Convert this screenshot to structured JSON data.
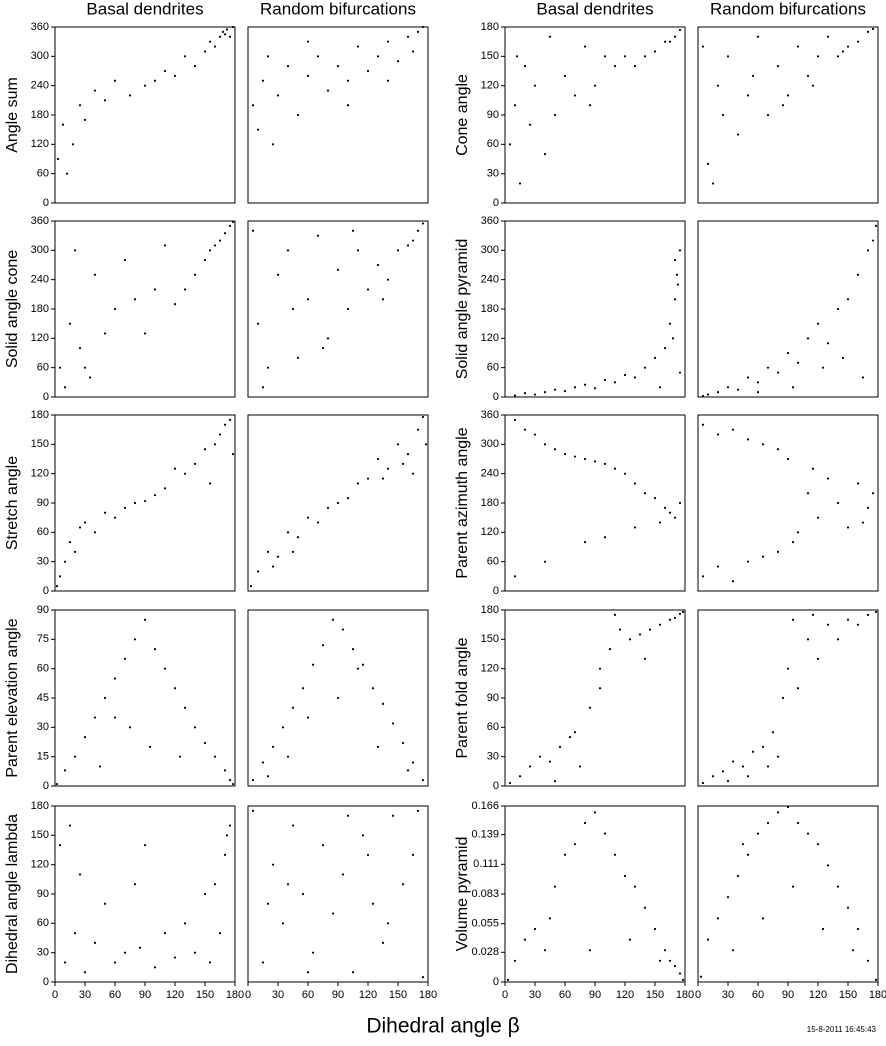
{
  "x_label": "Dihedral angle β",
  "timestamp": "15-8-2011 16:45:43",
  "chart_data": [
    {
      "type": "scatter",
      "title": "Basal dendrites",
      "ylabel": "Angle sum",
      "color": "#000",
      "xlim": [
        0,
        180
      ],
      "ylim": [
        0,
        360
      ],
      "yticks": [
        0,
        60,
        120,
        180,
        240,
        300,
        360
      ],
      "x": [
        3,
        8,
        12,
        18,
        25,
        30,
        40,
        50,
        60,
        75,
        90,
        100,
        110,
        120,
        130,
        140,
        150,
        155,
        160,
        165,
        168,
        170,
        172,
        175,
        178
      ],
      "values": [
        90,
        160,
        60,
        120,
        200,
        170,
        230,
        210,
        250,
        220,
        240,
        250,
        270,
        260,
        300,
        280,
        310,
        330,
        320,
        340,
        350,
        345,
        355,
        340,
        360
      ]
    },
    {
      "type": "scatter",
      "title": "Random bifurcations",
      "color": "#000",
      "xlim": [
        0,
        180
      ],
      "ylim": [
        0,
        360
      ],
      "x": [
        5,
        10,
        15,
        20,
        30,
        40,
        50,
        60,
        70,
        80,
        90,
        100,
        110,
        120,
        130,
        140,
        150,
        160,
        170,
        175,
        25,
        60,
        100,
        140,
        165
      ],
      "values": [
        200,
        150,
        250,
        300,
        220,
        280,
        180,
        260,
        300,
        230,
        280,
        250,
        320,
        270,
        300,
        330,
        290,
        340,
        350,
        360,
        120,
        330,
        200,
        250,
        310
      ]
    },
    {
      "type": "scatter",
      "title": "Basal dendrites",
      "ylabel": "Cone angle",
      "color": "#000",
      "xlim": [
        0,
        180
      ],
      "ylim": [
        0,
        180
      ],
      "yticks": [
        0,
        30,
        60,
        90,
        120,
        150,
        180
      ],
      "x": [
        5,
        10,
        15,
        20,
        25,
        30,
        40,
        50,
        60,
        70,
        80,
        90,
        100,
        110,
        120,
        130,
        140,
        150,
        160,
        165,
        170,
        175,
        12,
        45,
        85
      ],
      "values": [
        60,
        100,
        20,
        140,
        80,
        120,
        50,
        90,
        130,
        110,
        160,
        120,
        150,
        140,
        150,
        140,
        150,
        155,
        165,
        165,
        170,
        177,
        150,
        170,
        100
      ]
    },
    {
      "type": "scatter",
      "title": "Random bifurcations",
      "color": "#000",
      "xlim": [
        0,
        180
      ],
      "ylim": [
        0,
        180
      ],
      "x": [
        5,
        10,
        15,
        20,
        30,
        40,
        50,
        60,
        70,
        80,
        90,
        100,
        110,
        120,
        130,
        140,
        150,
        160,
        170,
        175,
        25,
        55,
        85,
        115,
        145
      ],
      "values": [
        160,
        40,
        20,
        120,
        150,
        70,
        110,
        170,
        90,
        140,
        110,
        160,
        130,
        150,
        170,
        150,
        160,
        165,
        175,
        178,
        90,
        130,
        100,
        120,
        155
      ]
    },
    {
      "type": "scatter",
      "ylabel": "Solid angle cone",
      "color": "#000",
      "xlim": [
        0,
        180
      ],
      "ylim": [
        0,
        360
      ],
      "yticks": [
        0,
        60,
        120,
        180,
        240,
        300,
        360
      ],
      "x": [
        5,
        10,
        15,
        20,
        25,
        30,
        40,
        50,
        60,
        70,
        80,
        90,
        100,
        110,
        120,
        130,
        140,
        150,
        155,
        160,
        165,
        170,
        175,
        178,
        35
      ],
      "values": [
        60,
        20,
        150,
        300,
        100,
        60,
        250,
        130,
        180,
        280,
        200,
        130,
        220,
        310,
        190,
        220,
        250,
        280,
        300,
        310,
        320,
        335,
        350,
        358,
        40
      ]
    },
    {
      "type": "scatter",
      "color": "#000",
      "xlim": [
        0,
        180
      ],
      "ylim": [
        0,
        360
      ],
      "x": [
        5,
        10,
        20,
        30,
        40,
        50,
        60,
        70,
        80,
        90,
        100,
        110,
        120,
        130,
        140,
        150,
        160,
        170,
        175,
        15,
        45,
        75,
        105,
        135,
        165
      ],
      "values": [
        340,
        150,
        60,
        250,
        300,
        80,
        200,
        330,
        120,
        260,
        180,
        300,
        220,
        270,
        240,
        300,
        310,
        340,
        355,
        20,
        180,
        100,
        340,
        200,
        320
      ]
    },
    {
      "type": "scatter",
      "ylabel": "Solid angle pyramid",
      "color": "#000",
      "xlim": [
        0,
        180
      ],
      "ylim": [
        0,
        360
      ],
      "yticks": [
        0,
        60,
        120,
        180,
        240,
        300,
        360
      ],
      "x": [
        10,
        20,
        30,
        40,
        50,
        60,
        70,
        80,
        90,
        100,
        110,
        120,
        130,
        140,
        150,
        160,
        165,
        170,
        172,
        175,
        175,
        170,
        168,
        173,
        155
      ],
      "values": [
        3,
        8,
        5,
        10,
        15,
        12,
        20,
        25,
        18,
        35,
        30,
        45,
        40,
        60,
        80,
        100,
        150,
        200,
        250,
        300,
        50,
        280,
        120,
        230,
        20
      ]
    },
    {
      "type": "scatter",
      "color": "#000",
      "xlim": [
        0,
        180
      ],
      "ylim": [
        0,
        360
      ],
      "x": [
        5,
        10,
        20,
        30,
        40,
        50,
        60,
        70,
        80,
        90,
        100,
        110,
        120,
        130,
        140,
        150,
        160,
        170,
        175,
        178,
        95,
        125,
        145,
        165,
        60
      ],
      "values": [
        2,
        5,
        10,
        20,
        15,
        40,
        30,
        60,
        50,
        90,
        70,
        120,
        150,
        110,
        180,
        200,
        250,
        300,
        320,
        350,
        20,
        60,
        80,
        40,
        10
      ]
    },
    {
      "type": "scatter",
      "ylabel": "Stretch angle",
      "color": "#000",
      "xlim": [
        0,
        180
      ],
      "ylim": [
        0,
        180
      ],
      "yticks": [
        0,
        30,
        60,
        90,
        120,
        150,
        180
      ],
      "x": [
        2,
        5,
        10,
        15,
        20,
        25,
        30,
        40,
        50,
        60,
        70,
        80,
        90,
        100,
        110,
        120,
        130,
        140,
        150,
        160,
        165,
        170,
        175,
        178,
        155
      ],
      "values": [
        5,
        15,
        30,
        50,
        40,
        65,
        70,
        60,
        80,
        75,
        85,
        90,
        92,
        98,
        105,
        125,
        120,
        130,
        145,
        150,
        160,
        170,
        175,
        140,
        110
      ]
    },
    {
      "type": "scatter",
      "color": "#000",
      "xlim": [
        0,
        180
      ],
      "ylim": [
        0,
        180
      ],
      "x": [
        3,
        10,
        20,
        30,
        40,
        50,
        60,
        70,
        80,
        90,
        100,
        110,
        120,
        130,
        140,
        150,
        160,
        170,
        175,
        25,
        45,
        135,
        155,
        165,
        178
      ],
      "values": [
        5,
        20,
        40,
        35,
        60,
        55,
        75,
        70,
        85,
        90,
        95,
        110,
        115,
        135,
        125,
        150,
        140,
        165,
        178,
        25,
        40,
        115,
        130,
        120,
        150
      ]
    },
    {
      "type": "scatter",
      "ylabel": "Parent azimuth angle",
      "color": "#000",
      "xlim": [
        0,
        180
      ],
      "ylim": [
        0,
        360
      ],
      "yticks": [
        0,
        60,
        120,
        180,
        240,
        300,
        360
      ],
      "x": [
        10,
        20,
        30,
        40,
        50,
        60,
        70,
        80,
        90,
        100,
        110,
        120,
        130,
        140,
        150,
        160,
        165,
        170,
        175,
        10,
        40,
        80,
        100,
        130,
        155
      ],
      "values": [
        350,
        330,
        320,
        300,
        290,
        280,
        275,
        270,
        265,
        260,
        250,
        240,
        220,
        200,
        190,
        170,
        160,
        150,
        180,
        30,
        60,
        100,
        110,
        130,
        140
      ]
    },
    {
      "type": "scatter",
      "color": "#000",
      "xlim": [
        0,
        180
      ],
      "ylim": [
        0,
        360
      ],
      "x": [
        5,
        20,
        35,
        50,
        65,
        80,
        90,
        5,
        20,
        35,
        50,
        65,
        80,
        95,
        110,
        120,
        130,
        140,
        150,
        160,
        170,
        175,
        100,
        115,
        165
      ],
      "values": [
        340,
        320,
        330,
        310,
        300,
        290,
        270,
        30,
        50,
        20,
        60,
        70,
        80,
        100,
        200,
        150,
        230,
        180,
        130,
        220,
        170,
        200,
        120,
        250,
        140
      ]
    },
    {
      "type": "scatter",
      "ylabel": "Parent elevation angle",
      "color": "#000",
      "xlim": [
        0,
        180
      ],
      "ylim": [
        0,
        90
      ],
      "yticks": [
        0,
        15,
        30,
        45,
        60,
        75,
        90
      ],
      "x": [
        2,
        10,
        20,
        30,
        40,
        50,
        60,
        70,
        80,
        90,
        100,
        110,
        120,
        130,
        140,
        150,
        160,
        170,
        175,
        178,
        45,
        75,
        95,
        125,
        60
      ],
      "values": [
        1,
        8,
        15,
        25,
        35,
        45,
        55,
        65,
        75,
        85,
        70,
        60,
        50,
        40,
        30,
        22,
        15,
        8,
        3,
        1,
        10,
        30,
        20,
        15,
        35
      ]
    },
    {
      "type": "scatter",
      "color": "#000",
      "xlim": [
        0,
        180
      ],
      "ylim": [
        0,
        90
      ],
      "x": [
        5,
        15,
        25,
        35,
        45,
        55,
        65,
        75,
        85,
        95,
        105,
        115,
        125,
        135,
        145,
        155,
        165,
        175,
        40,
        90,
        130,
        60,
        110,
        20,
        160
      ],
      "values": [
        3,
        12,
        20,
        30,
        40,
        50,
        62,
        72,
        85,
        80,
        70,
        62,
        50,
        42,
        32,
        22,
        12,
        3,
        15,
        45,
        20,
        35,
        60,
        5,
        8
      ]
    },
    {
      "type": "scatter",
      "ylabel": "Parent fold angle",
      "color": "#000",
      "xlim": [
        0,
        180
      ],
      "ylim": [
        0,
        180
      ],
      "yticks": [
        0,
        30,
        60,
        90,
        120,
        150,
        180
      ],
      "x": [
        5,
        15,
        25,
        35,
        45,
        55,
        65,
        75,
        85,
        95,
        105,
        115,
        125,
        135,
        145,
        155,
        165,
        170,
        175,
        178,
        50,
        70,
        95,
        110,
        140
      ],
      "values": [
        3,
        10,
        20,
        30,
        25,
        40,
        50,
        20,
        80,
        120,
        140,
        160,
        150,
        155,
        160,
        165,
        170,
        172,
        176,
        178,
        5,
        55,
        100,
        175,
        130
      ]
    },
    {
      "type": "scatter",
      "color": "#000",
      "xlim": [
        0,
        180
      ],
      "ylim": [
        0,
        180
      ],
      "x": [
        5,
        15,
        25,
        35,
        45,
        55,
        65,
        75,
        80,
        85,
        90,
        100,
        110,
        120,
        130,
        140,
        150,
        160,
        170,
        178,
        30,
        50,
        70,
        95,
        115
      ],
      "values": [
        3,
        10,
        15,
        25,
        20,
        35,
        40,
        55,
        30,
        90,
        120,
        100,
        150,
        130,
        165,
        150,
        170,
        165,
        175,
        178,
        5,
        10,
        20,
        170,
        175
      ]
    },
    {
      "type": "scatter",
      "ylabel": "Dihedral angle lambda",
      "color": "#000",
      "xlim": [
        0,
        180
      ],
      "ylim": [
        0,
        180
      ],
      "yticks": [
        0,
        30,
        60,
        90,
        120,
        150,
        180
      ],
      "xticks": [
        0,
        30,
        60,
        90,
        120,
        150,
        180
      ],
      "x": [
        5,
        10,
        15,
        20,
        30,
        40,
        50,
        60,
        70,
        80,
        90,
        100,
        110,
        120,
        130,
        140,
        150,
        160,
        165,
        170,
        172,
        175,
        25,
        85,
        155
      ],
      "values": [
        140,
        20,
        160,
        50,
        10,
        40,
        80,
        20,
        30,
        100,
        140,
        15,
        50,
        25,
        60,
        30,
        90,
        100,
        50,
        130,
        150,
        160,
        110,
        35,
        20
      ]
    },
    {
      "type": "scatter",
      "color": "#000",
      "xlim": [
        0,
        180
      ],
      "ylim": [
        0,
        180
      ],
      "xticks": [
        0,
        30,
        60,
        90,
        120,
        150,
        180
      ],
      "x": [
        5,
        15,
        25,
        35,
        45,
        55,
        65,
        75,
        85,
        95,
        105,
        115,
        125,
        135,
        145,
        155,
        165,
        175,
        20,
        60,
        100,
        140,
        170,
        40,
        120
      ],
      "values": [
        175,
        20,
        120,
        60,
        160,
        90,
        30,
        140,
        70,
        110,
        10,
        150,
        80,
        40,
        170,
        100,
        130,
        5,
        80,
        10,
        170,
        60,
        175,
        100,
        130
      ]
    },
    {
      "type": "scatter",
      "ylabel": "Volume pyramid",
      "color": "#000",
      "xlim": [
        0,
        180
      ],
      "ylim": [
        0,
        0.166
      ],
      "yticks": [
        0,
        0.028,
        0.055,
        0.083,
        0.111,
        0.139,
        0.166
      ],
      "xticks": [
        0,
        30,
        60,
        90,
        120,
        150,
        180
      ],
      "x": [
        3,
        10,
        20,
        30,
        40,
        50,
        60,
        70,
        80,
        90,
        100,
        110,
        120,
        130,
        140,
        150,
        160,
        165,
        170,
        175,
        178,
        45,
        85,
        125,
        155
      ],
      "values": [
        0.002,
        0.02,
        0.04,
        0.05,
        0.03,
        0.09,
        0.12,
        0.13,
        0.15,
        0.16,
        0.14,
        0.12,
        0.1,
        0.09,
        0.07,
        0.05,
        0.03,
        0.02,
        0.015,
        0.008,
        0.002,
        0.06,
        0.03,
        0.04,
        0.02
      ]
    },
    {
      "type": "scatter",
      "color": "#000",
      "xlim": [
        0,
        180
      ],
      "ylim": [
        0,
        0.166
      ],
      "xticks": [
        0,
        30,
        60,
        90,
        120,
        150,
        180
      ],
      "x": [
        3,
        10,
        20,
        30,
        40,
        50,
        60,
        70,
        80,
        90,
        100,
        110,
        120,
        130,
        140,
        150,
        160,
        170,
        178,
        35,
        65,
        95,
        125,
        155,
        45
      ],
      "values": [
        0.005,
        0.04,
        0.06,
        0.08,
        0.1,
        0.12,
        0.14,
        0.15,
        0.16,
        0.165,
        0.15,
        0.14,
        0.13,
        0.11,
        0.09,
        0.07,
        0.05,
        0.02,
        0.002,
        0.03,
        0.06,
        0.09,
        0.05,
        0.03,
        0.13
      ]
    }
  ]
}
